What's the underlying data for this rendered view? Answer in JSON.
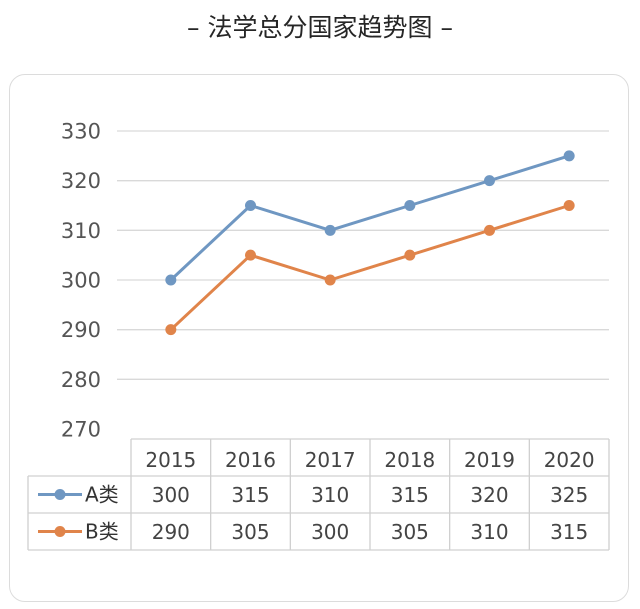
{
  "title": "– 法学总分国家趋势图 –",
  "chart_data": {
    "type": "line",
    "title": "法学总分国家趋势图",
    "categories": [
      "2015",
      "2016",
      "2017",
      "2018",
      "2019",
      "2020"
    ],
    "series": [
      {
        "name": "A类",
        "values": [
          300,
          315,
          310,
          315,
          320,
          325
        ],
        "color": "#6f97c2"
      },
      {
        "name": "B类",
        "values": [
          290,
          305,
          300,
          305,
          310,
          315
        ],
        "color": "#e0844a"
      }
    ],
    "ylim": [
      270,
      330
    ],
    "yticks": [
      "330",
      "320",
      "310",
      "300",
      "290",
      "280",
      "270"
    ],
    "grid": true,
    "data_table": true
  },
  "colors": {
    "grid": "#d9d9d9",
    "table_border": "#d0d0d0"
  }
}
